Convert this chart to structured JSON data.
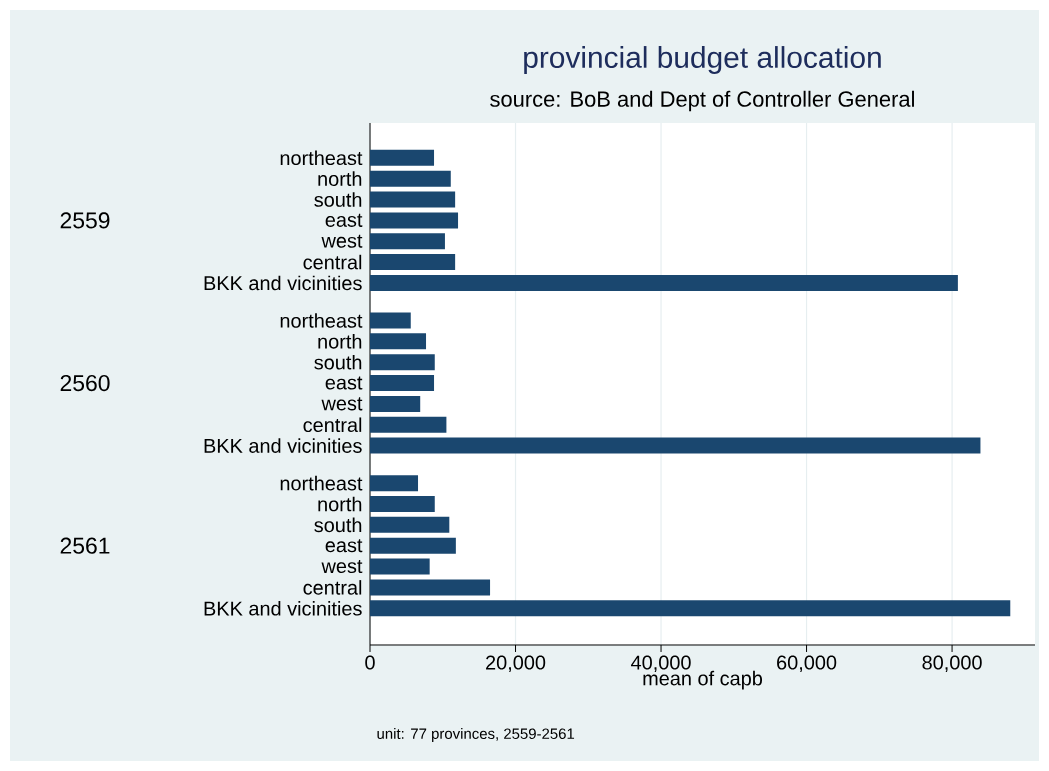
{
  "chart_data": {
    "type": "bar",
    "orientation": "horizontal",
    "title": "provincial budget allocation",
    "subtitle": "source: BoB and Dept of Controller General",
    "xlabel": "mean of capb",
    "categories": [
      "northeast",
      "north",
      "south",
      "east",
      "west",
      "central",
      "BKK and vicinities",
      "northeast",
      "north",
      "south",
      "east",
      "west",
      "central",
      "BKK and vicinities",
      "northeast",
      "north",
      "south",
      "east",
      "west",
      "central",
      "BKK and vicinities"
    ],
    "values": [
      8800,
      11100,
      11700,
      12100,
      10300,
      11700,
      80800,
      5600,
      7700,
      8900,
      8800,
      6900,
      10500,
      83900,
      6600,
      8900,
      10900,
      11800,
      8200,
      16500,
      88000
    ],
    "color": "#1a476f",
    "xlim": [
      0,
      91400
    ],
    "xticks": [
      0,
      {
        "value": 20000,
        "label": "20,000"
      },
      {
        "value": 40000,
        "label": "40,000"
      },
      {
        "value": 60000,
        "label": "60,000"
      },
      {
        "value": 80000,
        "label": "80,000"
      }
    ],
    "grid": "x",
    "annotations": [
      "2559",
      "2560",
      "2561",
      "unit: 77 provinces, 2559-2561"
    ]
  }
}
